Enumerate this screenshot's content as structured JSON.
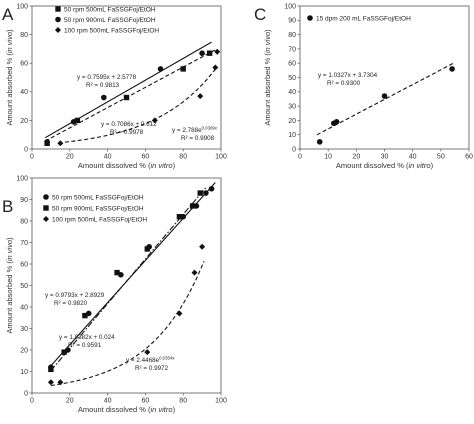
{
  "chart_data": [
    {
      "panel": "A",
      "type": "scatter",
      "xlabel_prefix": "Amount dissolved % (",
      "xlabel_italic": "in vitro",
      "xlabel_suffix": ")",
      "ylabel_prefix": "Amount absorbed % (",
      "ylabel_italic": "in vivo",
      "ylabel_suffix": ")",
      "xlim": [
        0,
        100
      ],
      "ylim": [
        0,
        100
      ],
      "xticks": [
        "0",
        "20",
        "40",
        "60",
        "80",
        "100"
      ],
      "yticks": [
        "0",
        "20",
        "40",
        "60",
        "80",
        "100"
      ],
      "legend_position": "top-left",
      "series": [
        {
          "name": "50 rpm  500mL FaSSGFoj/EtOH",
          "marker": "square",
          "line": "solid",
          "x": [
            8,
            24,
            50,
            80,
            94
          ],
          "y": [
            4,
            20,
            36,
            56,
            67
          ]
        },
        {
          "name": "50 rpm  900mL FaSSGFoj/EtOH",
          "marker": "circle",
          "line": "dashed",
          "x": [
            8,
            22,
            38,
            68,
            90
          ],
          "y": [
            5,
            19,
            36,
            56,
            67
          ]
        },
        {
          "name": "100 rpm  500mL FaSSGFoj/EtOH",
          "marker": "diamond",
          "line": "dashed",
          "x": [
            15,
            65,
            89,
            97,
            98
          ],
          "y": [
            4,
            20,
            37,
            57,
            68
          ]
        }
      ],
      "fits": [
        {
          "equation": "y = 0.7595x + 2.5778",
          "r2": "R² = 0.9813",
          "type": "linear",
          "a": 0.7595,
          "b": 2.5778,
          "x_range": [
            7,
            95
          ],
          "style": "solid"
        },
        {
          "equation": "y = 0.7086x + 0.612",
          "r2": "R² = 0.9978",
          "type": "linear",
          "a": 0.7086,
          "b": 0.612,
          "x_range": [
            7,
            97
          ],
          "style": "dashed"
        },
        {
          "equation_base": "y = 2.788e",
          "equation_exp": "0.0309x",
          "r2": "R² = 0.9908",
          "type": "exponential",
          "a": 2.788,
          "k": 0.0309,
          "x_range": [
            14,
            98
          ],
          "style": "dashed"
        }
      ]
    },
    {
      "panel": "B",
      "type": "scatter",
      "xlabel_prefix": "Amount dissolved % (",
      "xlabel_italic": "in vitro",
      "xlabel_suffix": ")",
      "ylabel_prefix": "Amount absorbed % (",
      "ylabel_italic": "in vivo",
      "ylabel_suffix": ")",
      "xlim": [
        0,
        100
      ],
      "ylim": [
        0,
        100
      ],
      "xticks": [
        "0",
        "20",
        "40",
        "60",
        "80",
        "100"
      ],
      "yticks": [
        "0",
        "10",
        "20",
        "30",
        "40",
        "50",
        "60",
        "70",
        "80",
        "90",
        "100"
      ],
      "legend_position": "top-left",
      "series": [
        {
          "name": "50 rpm  500mL FaSSGFoj/EtOH",
          "marker": "circle",
          "line": "solid",
          "x": [
            10,
            19,
            30,
            47,
            62,
            80,
            87,
            92,
            95
          ],
          "y": [
            12,
            20,
            37,
            55,
            68,
            82,
            87,
            93,
            95
          ]
        },
        {
          "name": "50 rpm  900mL FaSSGFoj/EtOH",
          "marker": "square",
          "line": "dashed",
          "x": [
            10,
            17,
            28,
            45,
            61,
            78,
            85,
            89
          ],
          "y": [
            11,
            19,
            36,
            56,
            67,
            82,
            87,
            93
          ]
        },
        {
          "name": "100 rpm  500mL FaSSGFoj/EtOH",
          "marker": "diamond",
          "line": "dashed",
          "x": [
            10,
            15,
            61,
            78,
            86,
            90
          ],
          "y": [
            5,
            5,
            19,
            37,
            56,
            68
          ]
        }
      ],
      "fits": [
        {
          "equation": "y = 0.9793x + 2.8929",
          "r2": "R² = 0.9820",
          "type": "linear",
          "a": 0.9793,
          "b": 2.8929,
          "x_range": [
            10,
            97
          ],
          "style": "solid"
        },
        {
          "equation": "y = 1.0382x + 0.024",
          "r2": "R² = 0.9591",
          "type": "linear",
          "a": 1.0382,
          "b": 0.024,
          "x_range": [
            10,
            92
          ],
          "style": "dashdot"
        },
        {
          "equation_base": "y = 2.4468e",
          "equation_exp": "0.0354x",
          "r2": "R² = 0.9972",
          "type": "exponential",
          "a": 2.4468,
          "k": 0.0354,
          "x_range": [
            10,
            91
          ],
          "style": "dashed"
        }
      ]
    },
    {
      "panel": "C",
      "type": "scatter",
      "xlabel_prefix": "Amount dissolved % (",
      "xlabel_italic": "in vitro",
      "xlabel_suffix": ")",
      "ylabel_prefix": "Amount absorbed % (",
      "ylabel_italic": "in vivo",
      "ylabel_suffix": ")",
      "xlim": [
        0,
        60
      ],
      "ylim": [
        0,
        100
      ],
      "xticks": [
        "0",
        "10",
        "20",
        "30",
        "40",
        "50",
        "60"
      ],
      "yticks": [
        "0",
        "10",
        "20",
        "30",
        "40",
        "50",
        "60",
        "70",
        "80",
        "90",
        "100"
      ],
      "legend_position": "top-left",
      "series": [
        {
          "name": "15 dpm 200 mL FaSSGFoj/EtOH",
          "marker": "circle",
          "line": "dashed",
          "x": [
            7,
            12,
            13,
            30,
            54
          ],
          "y": [
            5,
            18,
            19,
            37,
            56
          ]
        }
      ],
      "fits": [
        {
          "equation": "y = 1.0327x + 3.7304",
          "r2": "R² = 0.9300",
          "type": "linear",
          "a": 1.0327,
          "b": 3.7304,
          "x_range": [
            6,
            55
          ],
          "style": "dashed"
        }
      ]
    }
  ]
}
